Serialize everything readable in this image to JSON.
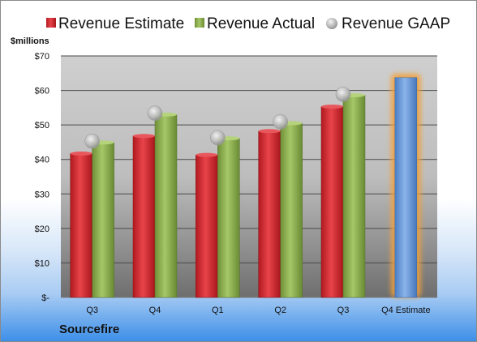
{
  "chart_data": {
    "type": "bar",
    "title": "",
    "ylabel": "$millions",
    "company": "Sourcefire",
    "categories": [
      "Q3",
      "Q4",
      "Q1",
      "Q2",
      "Q3",
      "Q4 Estimate"
    ],
    "ylim": [
      0,
      70
    ],
    "yticks": [
      0,
      10,
      20,
      30,
      40,
      50,
      60,
      70
    ],
    "ytick_labels": [
      "$-",
      "$10",
      "$20",
      "$30",
      "$40",
      "$50",
      "$60",
      "$70"
    ],
    "grid": true,
    "legend_position": "top",
    "series": [
      {
        "name": "Revenue Estimate",
        "kind": "bar",
        "color": "#d4242b",
        "values": [
          41.7,
          46.8,
          41.3,
          48.2,
          55.3,
          null
        ]
      },
      {
        "name": "Revenue Actual",
        "kind": "bar",
        "color": "#8db04e",
        "values": [
          44.9,
          53.0,
          46.1,
          50.5,
          58.6,
          null
        ]
      },
      {
        "name": "Revenue GAAP",
        "kind": "marker",
        "color": "#c8c8c8",
        "values": [
          45.3,
          53.4,
          46.3,
          50.9,
          58.9,
          null
        ]
      }
    ],
    "estimate": {
      "category_index": 5,
      "value": 63.7,
      "color": "#5b8fd4",
      "glow": "#f2a13a"
    }
  }
}
